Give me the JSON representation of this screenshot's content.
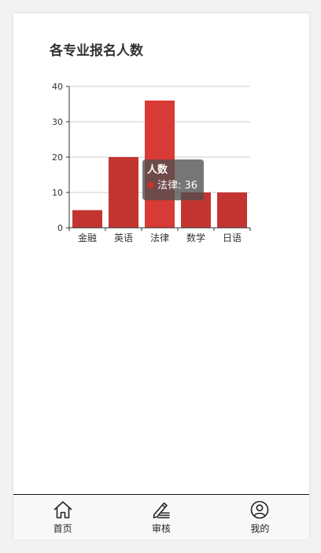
{
  "page": {
    "title": "各专业报名人数"
  },
  "chart_data": {
    "type": "bar",
    "title": "各专业报名人数",
    "categories": [
      "金融",
      "英语",
      "法律",
      "数学",
      "日语"
    ],
    "series": [
      {
        "name": "人数",
        "values": [
          5,
          20,
          36,
          10,
          10
        ]
      }
    ],
    "ylim": [
      0,
      40
    ],
    "yticks": [
      0,
      10,
      20,
      30,
      40
    ],
    "grid": true,
    "bar_color": "#c23531",
    "highlight_color": "#d83a35",
    "highlight_index": 2
  },
  "tooltip": {
    "title": "人数",
    "label": "法律: 36",
    "dot_color": "#c23531"
  },
  "tabbar": {
    "items": [
      {
        "label": "首页",
        "icon": "home-icon"
      },
      {
        "label": "审核",
        "icon": "pen-edit-icon"
      },
      {
        "label": "我的",
        "icon": "user-icon"
      }
    ]
  }
}
